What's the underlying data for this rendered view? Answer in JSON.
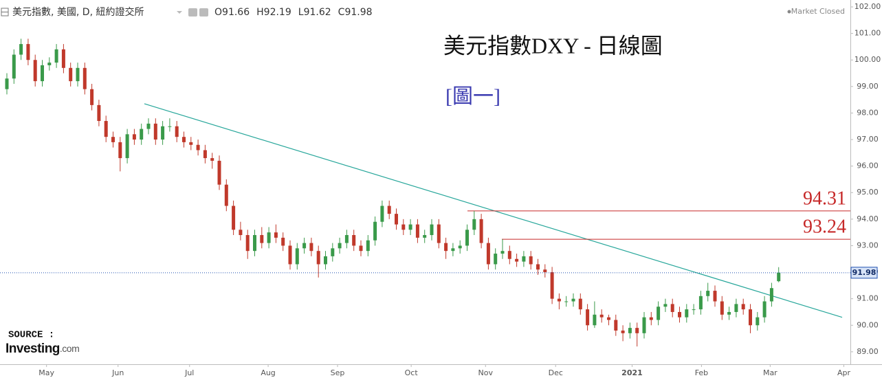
{
  "chart_data": {
    "type": "candlestick",
    "header": "美元指數, 美國, D, 紐約證交所",
    "ohlc_labels": [
      "O",
      "H",
      "L",
      "C"
    ],
    "status": "Market Closed",
    "title": "美元指數DXY - 日線圖",
    "subtitle": "[圖一]",
    "source_label": "SOURCE :",
    "logo": {
      "name": "Investing",
      "suffix": ".com"
    },
    "up_color": "#3a9a4a",
    "down_color": "#c0392b",
    "categories": [
      null,
      null,
      null,
      null,
      null,
      null,
      null,
      null,
      null,
      null,
      null,
      null,
      null,
      null,
      null,
      null,
      null,
      null,
      null,
      null,
      null,
      null,
      null,
      null,
      null,
      null,
      null,
      null,
      null,
      null,
      null,
      null,
      null,
      null,
      null,
      null,
      null,
      null,
      null,
      null,
      null,
      null,
      null,
      null,
      null,
      null,
      null,
      null,
      null,
      null,
      null,
      null,
      null,
      null,
      null,
      null,
      null,
      null,
      null,
      null,
      null,
      null,
      null,
      null,
      null,
      null,
      null,
      null,
      null,
      null,
      null,
      null,
      null,
      null,
      null,
      null,
      null,
      null,
      null,
      null,
      null,
      null,
      null,
      null,
      null,
      null,
      null,
      null,
      null,
      null,
      null,
      null,
      null,
      null,
      null,
      null,
      null,
      null,
      null,
      null,
      null,
      null,
      null,
      null,
      null,
      null,
      null,
      null,
      null,
      null
    ],
    "open": [
      98.9,
      99.3,
      100.2,
      100.6,
      100.0,
      99.2,
      99.8,
      99.9,
      100.4,
      99.7,
      99.2,
      99.7,
      98.9,
      98.3,
      97.7,
      97.1,
      96.9,
      96.3,
      97.2,
      97.0,
      97.4,
      97.6,
      97.0,
      97.5,
      97.5,
      97.1,
      96.9,
      96.8,
      96.6,
      96.3,
      96.2,
      95.3,
      94.5,
      93.6,
      93.4,
      92.8,
      93.4,
      93.1,
      93.5,
      93.3,
      93.0,
      92.3,
      92.9,
      93.1,
      92.8,
      92.3,
      92.6,
      92.9,
      93.1,
      93.4,
      93.0,
      92.8,
      93.2,
      93.9,
      94.5,
      94.2,
      93.8,
      93.6,
      93.8,
      93.3,
      93.4,
      93.8,
      93.1,
      92.8,
      92.9,
      93.0,
      93.6,
      94.0,
      93.1,
      92.3,
      92.7,
      92.8,
      92.5,
      92.4,
      92.6,
      92.3,
      92.1,
      92.0,
      91.0,
      90.9,
      90.9,
      91.0,
      90.6,
      90.0,
      90.4,
      90.3,
      90.2,
      89.8,
      89.7,
      89.9,
      89.7,
      90.3,
      90.2,
      90.7,
      90.8,
      90.5,
      90.3,
      90.6,
      90.6,
      91.1,
      91.3,
      90.9,
      90.4,
      90.5,
      90.8,
      90.6,
      90.0,
      90.3,
      90.9,
      91.66
    ],
    "high": [
      99.5,
      100.4,
      100.8,
      100.8,
      100.2,
      100.0,
      100.1,
      100.6,
      100.6,
      99.9,
      99.9,
      99.9,
      99.1,
      98.5,
      97.9,
      97.3,
      97.1,
      97.4,
      97.4,
      97.6,
      97.8,
      97.8,
      97.7,
      97.8,
      97.7,
      97.3,
      97.1,
      97.0,
      96.8,
      96.5,
      96.4,
      95.5,
      94.7,
      93.9,
      93.6,
      93.6,
      93.7,
      93.7,
      93.8,
      93.5,
      93.2,
      93.1,
      93.3,
      93.3,
      93.0,
      92.8,
      93.1,
      93.3,
      93.6,
      93.6,
      93.2,
      93.4,
      94.1,
      94.7,
      94.7,
      94.4,
      94.0,
      94.0,
      94.0,
      93.6,
      94.0,
      94.0,
      93.3,
      93.1,
      93.2,
      93.8,
      94.31,
      94.2,
      93.3,
      92.9,
      93.24,
      93.0,
      92.7,
      92.8,
      92.8,
      92.5,
      92.3,
      92.2,
      91.2,
      91.1,
      91.2,
      91.2,
      90.8,
      90.9,
      90.6,
      90.4,
      90.4,
      90.0,
      90.1,
      90.1,
      90.5,
      90.5,
      90.9,
      91.0,
      91.0,
      90.7,
      90.8,
      90.8,
      91.3,
      91.6,
      91.5,
      91.1,
      90.7,
      91.0,
      91.0,
      90.8,
      90.5,
      91.1,
      91.6,
      92.19
    ],
    "low": [
      98.7,
      99.1,
      100.0,
      99.8,
      99.0,
      99.0,
      99.6,
      99.7,
      99.5,
      99.0,
      99.0,
      98.7,
      98.1,
      97.5,
      96.9,
      96.7,
      95.8,
      96.1,
      96.8,
      96.8,
      97.2,
      96.8,
      96.8,
      97.3,
      96.9,
      96.7,
      96.6,
      96.4,
      96.1,
      95.9,
      95.1,
      94.3,
      93.4,
      93.2,
      92.5,
      92.6,
      92.9,
      92.9,
      93.1,
      92.8,
      92.1,
      92.1,
      92.7,
      92.6,
      91.8,
      92.1,
      92.4,
      92.7,
      92.9,
      92.8,
      92.6,
      92.6,
      93.0,
      93.7,
      94.0,
      93.6,
      93.4,
      93.4,
      93.1,
      93.1,
      93.2,
      92.9,
      92.5,
      92.6,
      92.7,
      92.8,
      93.4,
      92.9,
      92.1,
      92.1,
      92.5,
      92.3,
      92.2,
      92.2,
      92.1,
      91.9,
      91.8,
      90.8,
      90.6,
      90.7,
      90.7,
      90.4,
      89.8,
      89.9,
      90.1,
      90.0,
      89.6,
      89.4,
      89.5,
      89.2,
      89.5,
      90.0,
      90.0,
      90.5,
      90.3,
      90.1,
      90.1,
      90.4,
      90.4,
      90.9,
      90.7,
      90.2,
      90.2,
      90.3,
      90.4,
      89.7,
      89.8,
      90.1,
      90.7,
      91.62
    ],
    "close": [
      99.3,
      100.2,
      100.6,
      100.0,
      99.2,
      99.8,
      99.9,
      100.4,
      99.7,
      99.2,
      99.7,
      98.9,
      98.3,
      97.7,
      97.1,
      96.9,
      96.3,
      97.2,
      97.0,
      97.4,
      97.6,
      97.0,
      97.5,
      97.5,
      97.1,
      96.9,
      96.8,
      96.6,
      96.3,
      96.2,
      95.3,
      94.5,
      93.6,
      93.4,
      92.8,
      93.4,
      93.1,
      93.5,
      93.3,
      93.0,
      92.3,
      92.9,
      93.1,
      92.8,
      92.3,
      92.6,
      92.9,
      93.1,
      93.4,
      93.0,
      92.8,
      93.2,
      93.9,
      94.5,
      94.2,
      93.8,
      93.6,
      93.8,
      93.3,
      93.4,
      93.8,
      93.1,
      92.8,
      92.9,
      93.0,
      93.6,
      94.0,
      93.1,
      92.3,
      92.7,
      92.8,
      92.5,
      92.4,
      92.6,
      92.3,
      92.1,
      92.0,
      91.0,
      90.9,
      90.9,
      91.0,
      90.6,
      90.0,
      90.4,
      90.3,
      90.2,
      89.8,
      89.7,
      89.9,
      89.7,
      90.3,
      90.2,
      90.7,
      90.8,
      90.5,
      90.3,
      90.6,
      90.6,
      91.1,
      91.3,
      90.9,
      90.4,
      90.5,
      90.8,
      90.6,
      90.0,
      90.3,
      90.9,
      91.4,
      91.98
    ],
    "xticks": [
      {
        "value": 5.6,
        "label": "May"
      },
      {
        "value": 15.7,
        "label": "Jun"
      },
      {
        "value": 25.8,
        "label": "Jul"
      },
      {
        "value": 36.9,
        "label": "Aug"
      },
      {
        "value": 46.7,
        "label": "Sep"
      },
      {
        "value": 57.1,
        "label": "Oct"
      },
      {
        "value": 67.6,
        "label": "Nov"
      },
      {
        "value": 77.5,
        "label": "Dec"
      },
      {
        "value": 88.3,
        "label": "2021"
      },
      {
        "value": 98.1,
        "label": "Feb"
      },
      {
        "value": 107.8,
        "label": "Mar"
      },
      {
        "value": 118.2,
        "label": "Apr"
      }
    ],
    "ylim": [
      88.53,
      102.26
    ],
    "yticks": [
      {
        "value": 89,
        "label": "89.00"
      },
      {
        "value": 90,
        "label": "90.00"
      },
      {
        "value": 91,
        "label": "91.00"
      },
      {
        "value": 92,
        "label": "92.00"
      },
      {
        "value": 93,
        "label": "93.00"
      },
      {
        "value": 94,
        "label": "94.00"
      },
      {
        "value": 95,
        "label": "95.00"
      },
      {
        "value": 96,
        "label": "96.00"
      },
      {
        "value": 97,
        "label": "97.00"
      },
      {
        "value": 98,
        "label": "98.00"
      },
      {
        "value": 99,
        "label": "99.00"
      },
      {
        "value": 100,
        "label": "100.00"
      },
      {
        "value": 101,
        "label": "101.00"
      },
      {
        "value": 102,
        "label": "102.00"
      }
    ],
    "levels": [
      94.31,
      93.24
    ],
    "level_color": "#c62828",
    "trendline": [
      98.35,
      90.3
    ],
    "trend_color": "#26a69a",
    "last_price_color": "#1e4fb0"
  }
}
